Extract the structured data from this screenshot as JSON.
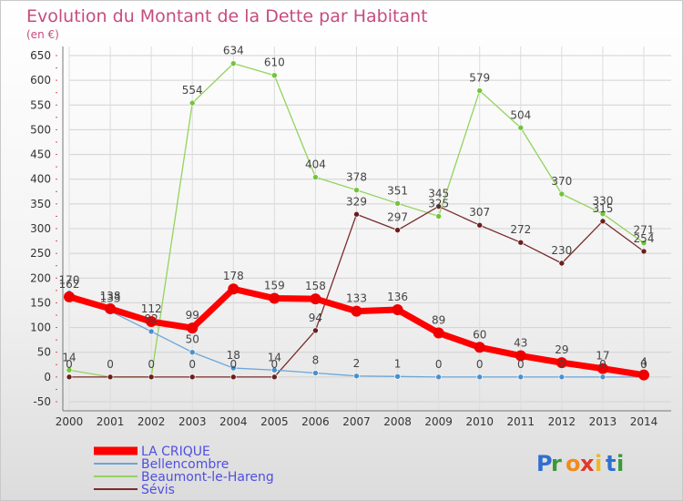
{
  "chart_data": {
    "type": "line",
    "title": "Evolution du Montant de la Dette par Habitant",
    "subtitle": "(en €)",
    "xlabel": "",
    "ylabel": "",
    "ylim": [
      -50,
      650
    ],
    "yticks": [
      -50,
      0,
      50,
      100,
      150,
      200,
      250,
      300,
      350,
      400,
      450,
      500,
      550,
      600,
      650
    ],
    "categories": [
      "2000",
      "2001",
      "2002",
      "2003",
      "2004",
      "2005",
      "2006",
      "2007",
      "2008",
      "2009",
      "2010",
      "2011",
      "2012",
      "2013",
      "2014"
    ],
    "grid": true,
    "legend_position": "bottom-left",
    "series": [
      {
        "name": "Beaumont-le-Hareng",
        "color": "#93d35e",
        "marker": "#73c43a",
        "width": 1.3,
        "radius": 3,
        "values": [
          14,
          0,
          0,
          554,
          634,
          610,
          404,
          378,
          351,
          325,
          579,
          504,
          370,
          330,
          271
        ]
      },
      {
        "name": "Sévis",
        "color": "#7a2b2b",
        "marker": "#6a1f1f",
        "width": 1.3,
        "radius": 3,
        "values": [
          0,
          0,
          0,
          0,
          0,
          0,
          94,
          329,
          297,
          345,
          307,
          272,
          230,
          315,
          254
        ]
      },
      {
        "name": "Bellencombre",
        "color": "#6aa7d9",
        "marker": "#4b8fcc",
        "width": 1.3,
        "radius": 3,
        "values": [
          170,
          133,
          92,
          50,
          18,
          14,
          8,
          2,
          1,
          0,
          0,
          0,
          0,
          0,
          0
        ]
      },
      {
        "name": "LA CRIQUE",
        "color": "#ff0000",
        "marker": "#ee0000",
        "width": 7,
        "radius": 6,
        "values": [
          162,
          138,
          112,
          99,
          178,
          159,
          158,
          133,
          136,
          89,
          60,
          43,
          29,
          17,
          4
        ]
      }
    ],
    "legend_order": [
      "LA CRIQUE",
      "Bellencombre",
      "Beaumont-le-Hareng",
      "Sévis"
    ],
    "legend_color": "#4f4fe0",
    "data_labels": [
      {
        "series": "Beaumont-le-Hareng",
        "index": 0,
        "text": "14"
      },
      {
        "series": "Beaumont-le-Hareng",
        "index": 3,
        "text": "554"
      },
      {
        "series": "Beaumont-le-Hareng",
        "index": 4,
        "text": "634"
      },
      {
        "series": "Beaumont-le-Hareng",
        "index": 5,
        "text": "610"
      },
      {
        "series": "Beaumont-le-Hareng",
        "index": 6,
        "text": "404"
      },
      {
        "series": "Beaumont-le-Hareng",
        "index": 7,
        "text": "378"
      },
      {
        "series": "Beaumont-le-Hareng",
        "index": 8,
        "text": "351"
      },
      {
        "series": "Beaumont-le-Hareng",
        "index": 9,
        "text": "325"
      },
      {
        "series": "Beaumont-le-Hareng",
        "index": 10,
        "text": "579"
      },
      {
        "series": "Beaumont-le-Hareng",
        "index": 11,
        "text": "504"
      },
      {
        "series": "Beaumont-le-Hareng",
        "index": 12,
        "text": "370"
      },
      {
        "series": "Beaumont-le-Hareng",
        "index": 13,
        "text": "330"
      },
      {
        "series": "Beaumont-le-Hareng",
        "index": 14,
        "text": "271"
      },
      {
        "series": "Sévis",
        "index": 0,
        "text": "0"
      },
      {
        "series": "Sévis",
        "index": 1,
        "text": "0"
      },
      {
        "series": "Sévis",
        "index": 2,
        "text": "0"
      },
      {
        "series": "Sévis",
        "index": 3,
        "text": "0"
      },
      {
        "series": "Sévis",
        "index": 4,
        "text": "0"
      },
      {
        "series": "Sévis",
        "index": 5,
        "text": "0"
      },
      {
        "series": "Sévis",
        "index": 6,
        "text": "94"
      },
      {
        "series": "Sévis",
        "index": 7,
        "text": "329"
      },
      {
        "series": "Sévis",
        "index": 8,
        "text": "297"
      },
      {
        "series": "Sévis",
        "index": 9,
        "text": "345"
      },
      {
        "series": "Sévis",
        "index": 10,
        "text": "307"
      },
      {
        "series": "Sévis",
        "index": 11,
        "text": "272"
      },
      {
        "series": "Sévis",
        "index": 12,
        "text": "230"
      },
      {
        "series": "Sévis",
        "index": 13,
        "text": "315"
      },
      {
        "series": "Sévis",
        "index": 14,
        "text": "254"
      },
      {
        "series": "Bellencombre",
        "index": 0,
        "text": "170"
      },
      {
        "series": "Bellencombre",
        "index": 1,
        "text": "133"
      },
      {
        "series": "Bellencombre",
        "index": 2,
        "text": "92"
      },
      {
        "series": "Bellencombre",
        "index": 3,
        "text": "50"
      },
      {
        "series": "Bellencombre",
        "index": 4,
        "text": "18"
      },
      {
        "series": "Bellencombre",
        "index": 5,
        "text": "14"
      },
      {
        "series": "Bellencombre",
        "index": 6,
        "text": "8"
      },
      {
        "series": "Bellencombre",
        "index": 7,
        "text": "2"
      },
      {
        "series": "Bellencombre",
        "index": 8,
        "text": "1"
      },
      {
        "series": "Bellencombre",
        "index": 9,
        "text": "0"
      },
      {
        "series": "Bellencombre",
        "index": 10,
        "text": "0"
      },
      {
        "series": "Bellencombre",
        "index": 11,
        "text": "0"
      },
      {
        "series": "Bellencombre",
        "index": 12,
        "text": "0"
      },
      {
        "series": "Bellencombre",
        "index": 13,
        "text": "0"
      },
      {
        "series": "Bellencombre",
        "index": 14,
        "text": "0"
      },
      {
        "series": "LA CRIQUE",
        "index": 0,
        "text": "162"
      },
      {
        "series": "LA CRIQUE",
        "index": 1,
        "text": "138"
      },
      {
        "series": "LA CRIQUE",
        "index": 2,
        "text": "112"
      },
      {
        "series": "LA CRIQUE",
        "index": 3,
        "text": "99"
      },
      {
        "series": "LA CRIQUE",
        "index": 4,
        "text": "178"
      },
      {
        "series": "LA CRIQUE",
        "index": 5,
        "text": "159"
      },
      {
        "series": "LA CRIQUE",
        "index": 6,
        "text": "158"
      },
      {
        "series": "LA CRIQUE",
        "index": 7,
        "text": "133"
      },
      {
        "series": "LA CRIQUE",
        "index": 8,
        "text": "136"
      },
      {
        "series": "LA CRIQUE",
        "index": 9,
        "text": "89"
      },
      {
        "series": "LA CRIQUE",
        "index": 10,
        "text": "60"
      },
      {
        "series": "LA CRIQUE",
        "index": 11,
        "text": "43"
      },
      {
        "series": "LA CRIQUE",
        "index": 12,
        "text": "29"
      },
      {
        "series": "LA CRIQUE",
        "index": 13,
        "text": "17"
      },
      {
        "series": "LA CRIQUE",
        "index": 14,
        "text": "4"
      }
    ]
  },
  "brand": {
    "letters": [
      "P",
      "r",
      "o",
      "x",
      "i",
      "t",
      "i"
    ],
    "colors": [
      "#2f6fd0",
      "#3a9a3a",
      "#f08c1c",
      "#e03a2a",
      "#f0b81c",
      "#2f6fd0",
      "#3a9a3a"
    ]
  }
}
